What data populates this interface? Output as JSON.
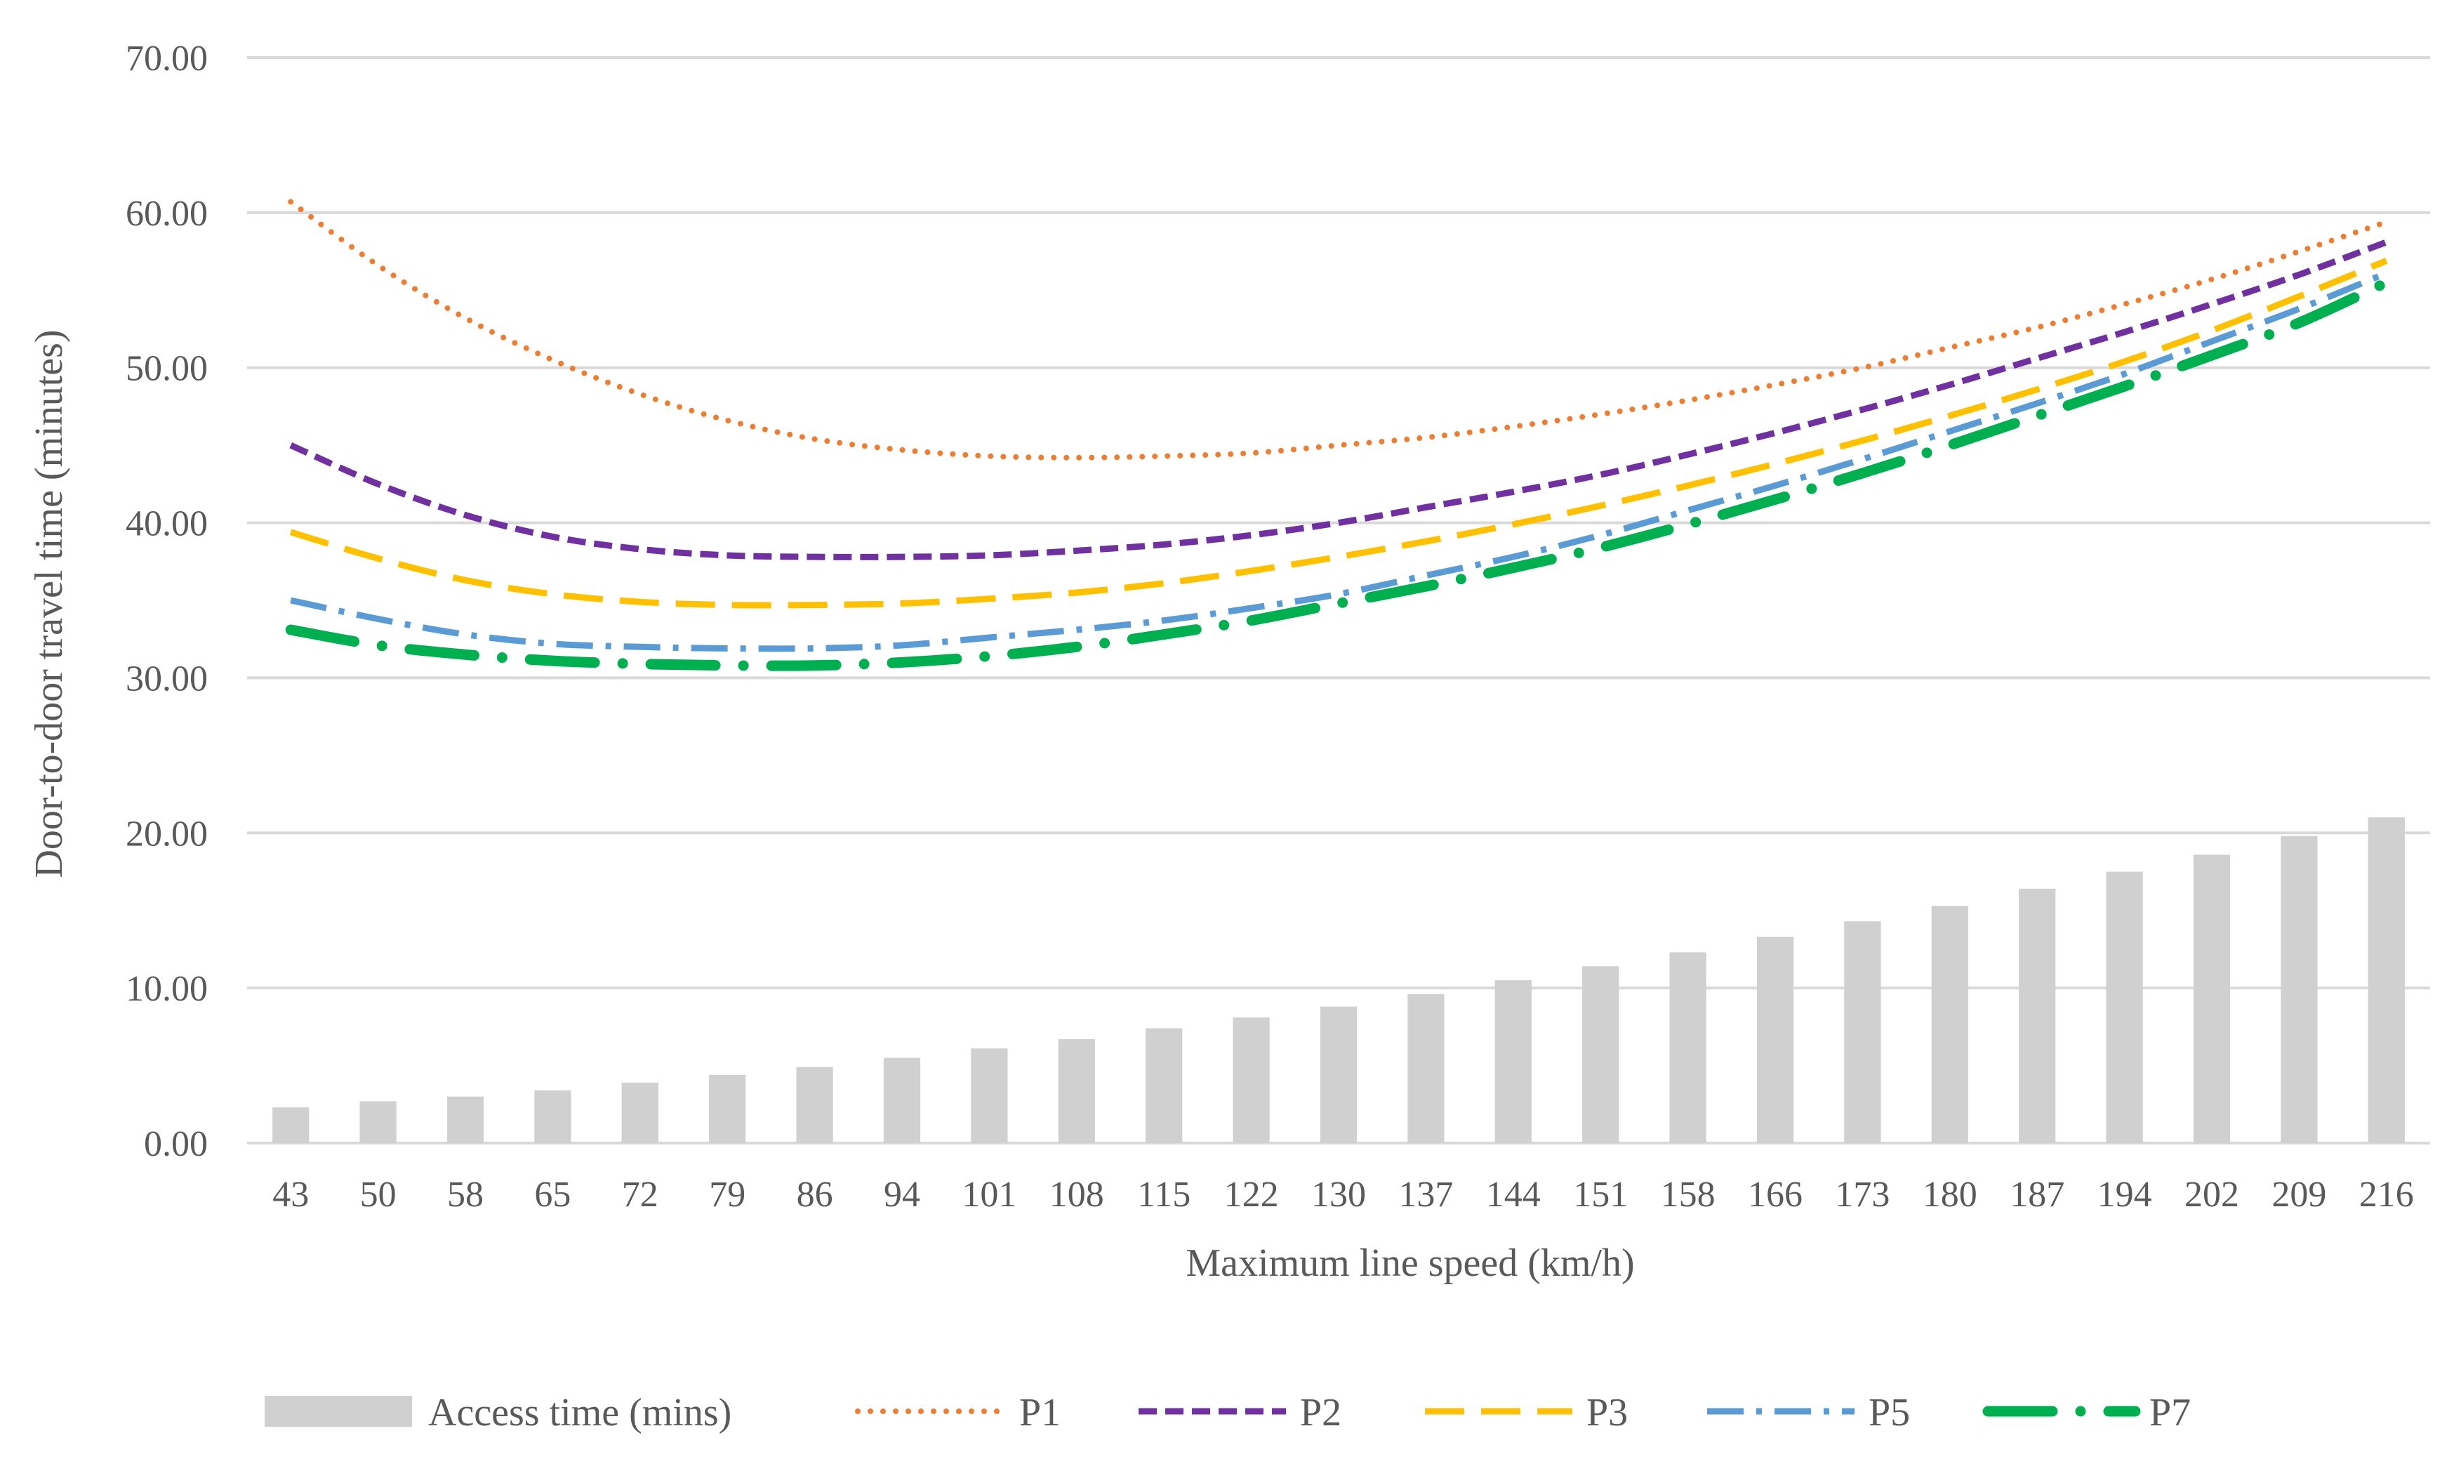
{
  "chart_data": {
    "type": "bar+line",
    "title": "",
    "xlabel": "Maximum line speed (km/h)",
    "ylabel": "Door-to-door travel time (minutes)",
    "ylim": [
      0,
      70
    ],
    "yticks": [
      "0.00",
      "10.00",
      "20.00",
      "30.00",
      "40.00",
      "50.00",
      "60.00",
      "70.00"
    ],
    "grid": true,
    "legend_position": "bottom",
    "categories": [
      "43",
      "50",
      "58",
      "65",
      "72",
      "79",
      "86",
      "94",
      "101",
      "108",
      "115",
      "122",
      "130",
      "137",
      "144",
      "151",
      "158",
      "166",
      "173",
      "180",
      "187",
      "194",
      "202",
      "209",
      "216"
    ],
    "bars": {
      "name": "Access time (mins)",
      "color": "#d0d0d0",
      "values": [
        2.3,
        2.7,
        3.0,
        3.4,
        3.9,
        4.4,
        4.9,
        5.5,
        6.1,
        6.7,
        7.4,
        8.1,
        8.8,
        9.6,
        10.5,
        11.4,
        12.3,
        13.3,
        14.3,
        15.3,
        16.4,
        17.5,
        18.6,
        19.8,
        21.0
      ]
    },
    "series": [
      {
        "name": "P1",
        "color": "#ed7d31",
        "style": "dotted",
        "values": [
          60.7,
          56.6,
          53.2,
          50.5,
          48.3,
          46.6,
          45.4,
          44.7,
          44.3,
          44.2,
          44.3,
          44.5,
          45.0,
          45.5,
          46.2,
          47.0,
          47.9,
          48.9,
          50.0,
          51.3,
          52.6,
          54.1,
          55.7,
          57.5,
          59.4
        ]
      },
      {
        "name": "P2",
        "color": "#7030a0",
        "style": "dashed",
        "values": [
          45.0,
          42.5,
          40.5,
          39.1,
          38.3,
          37.9,
          37.8,
          37.8,
          37.9,
          38.2,
          38.6,
          39.2,
          40.0,
          41.0,
          42.0,
          43.1,
          44.4,
          45.8,
          47.3,
          48.9,
          50.6,
          52.3,
          54.1,
          56.0,
          58.1
        ]
      },
      {
        "name": "P3",
        "color": "#ffc000",
        "style": "long-dashed",
        "values": [
          39.4,
          37.7,
          36.3,
          35.4,
          34.9,
          34.7,
          34.7,
          34.8,
          35.1,
          35.5,
          36.1,
          36.9,
          37.8,
          38.8,
          39.9,
          41.1,
          42.4,
          43.8,
          45.3,
          46.9,
          48.6,
          50.4,
          52.4,
          54.6,
          56.9
        ]
      },
      {
        "name": "P5",
        "color": "#5b9bd5",
        "style": "dash-dot",
        "values": [
          35.0,
          33.8,
          32.8,
          32.2,
          32.0,
          31.9,
          31.9,
          32.1,
          32.6,
          33.1,
          33.7,
          34.5,
          35.4,
          36.6,
          37.8,
          39.2,
          40.8,
          42.4,
          44.1,
          45.9,
          47.7,
          49.6,
          51.7,
          53.8,
          56.1
        ]
      },
      {
        "name": "P7",
        "color": "#00b050",
        "style": "long-dash-dot",
        "values": [
          33.1,
          32.1,
          31.5,
          31.1,
          30.9,
          30.8,
          30.8,
          31.0,
          31.4,
          32.0,
          32.8,
          33.7,
          34.8,
          35.9,
          37.1,
          38.4,
          39.9,
          41.5,
          43.2,
          45.0,
          46.9,
          48.8,
          50.8,
          52.9,
          55.5
        ]
      }
    ]
  }
}
